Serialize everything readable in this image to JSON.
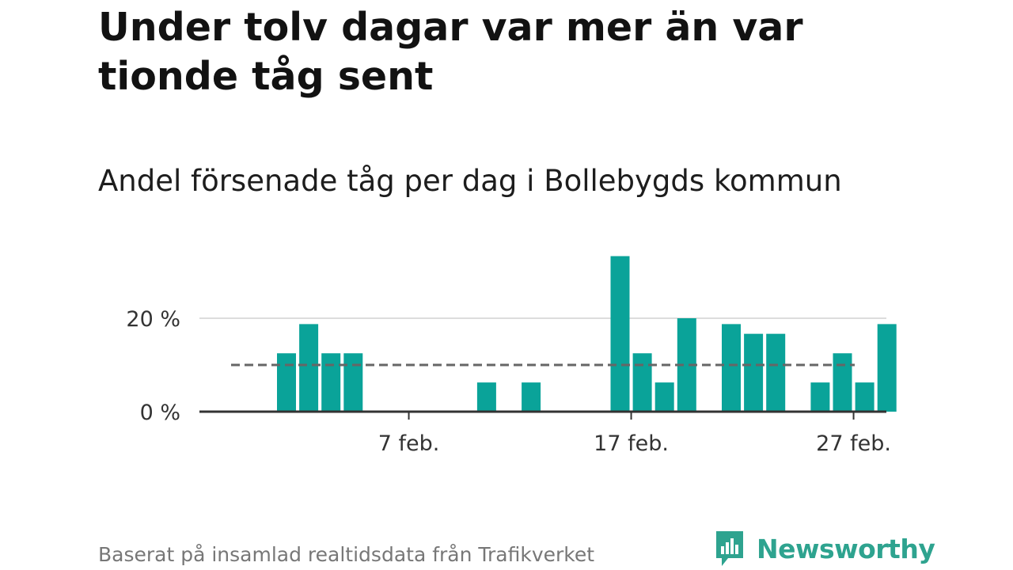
{
  "title": "Under tolv dagar var mer än var tionde tåg sent",
  "subtitle": "Andel försenade tåg per dag i Bollebygds kommun",
  "source": "Baserat på insamlad realtidsdata från Trafikverket",
  "brand": {
    "name": "Newsworthy",
    "icon": "newsworthy-logo-icon",
    "color": "#2ea38f"
  },
  "colors": {
    "bar": "#0aa399",
    "reference_line": "#666666",
    "grid": "#dddddd",
    "axis": "#333333"
  },
  "chart_data": {
    "type": "bar",
    "x": [
      "1 feb.",
      "2 feb.",
      "3 feb.",
      "4 feb.",
      "5 feb.",
      "6 feb.",
      "7 feb.",
      "8 feb.",
      "9 feb.",
      "10 feb.",
      "11 feb.",
      "12 feb.",
      "13 feb.",
      "14 feb.",
      "15 feb.",
      "16 feb.",
      "17 feb.",
      "18 feb.",
      "19 feb.",
      "20 feb.",
      "21 feb.",
      "22 feb.",
      "23 feb.",
      "24 feb.",
      "25 feb.",
      "26 feb.",
      "27 feb.",
      "28 feb."
    ],
    "values": [
      12.5,
      18.75,
      12.5,
      12.5,
      0,
      0,
      0,
      0,
      0,
      6.25,
      0,
      6.25,
      0,
      0,
      0,
      33.3,
      12.5,
      6.25,
      20,
      0,
      18.75,
      16.67,
      16.67,
      0,
      6.25,
      12.5,
      6.25,
      18.75
    ],
    "reference_line": {
      "value": 10,
      "style": "dashed"
    },
    "x_ticks": [
      "7 feb.",
      "17 feb.",
      "27 feb."
    ],
    "y_ticks": [
      {
        "value": 0,
        "label": "0 %"
      },
      {
        "value": 20,
        "label": "20 %"
      }
    ],
    "ylim": [
      0,
      35
    ],
    "xlabel": "",
    "ylabel": "",
    "grid": true
  }
}
